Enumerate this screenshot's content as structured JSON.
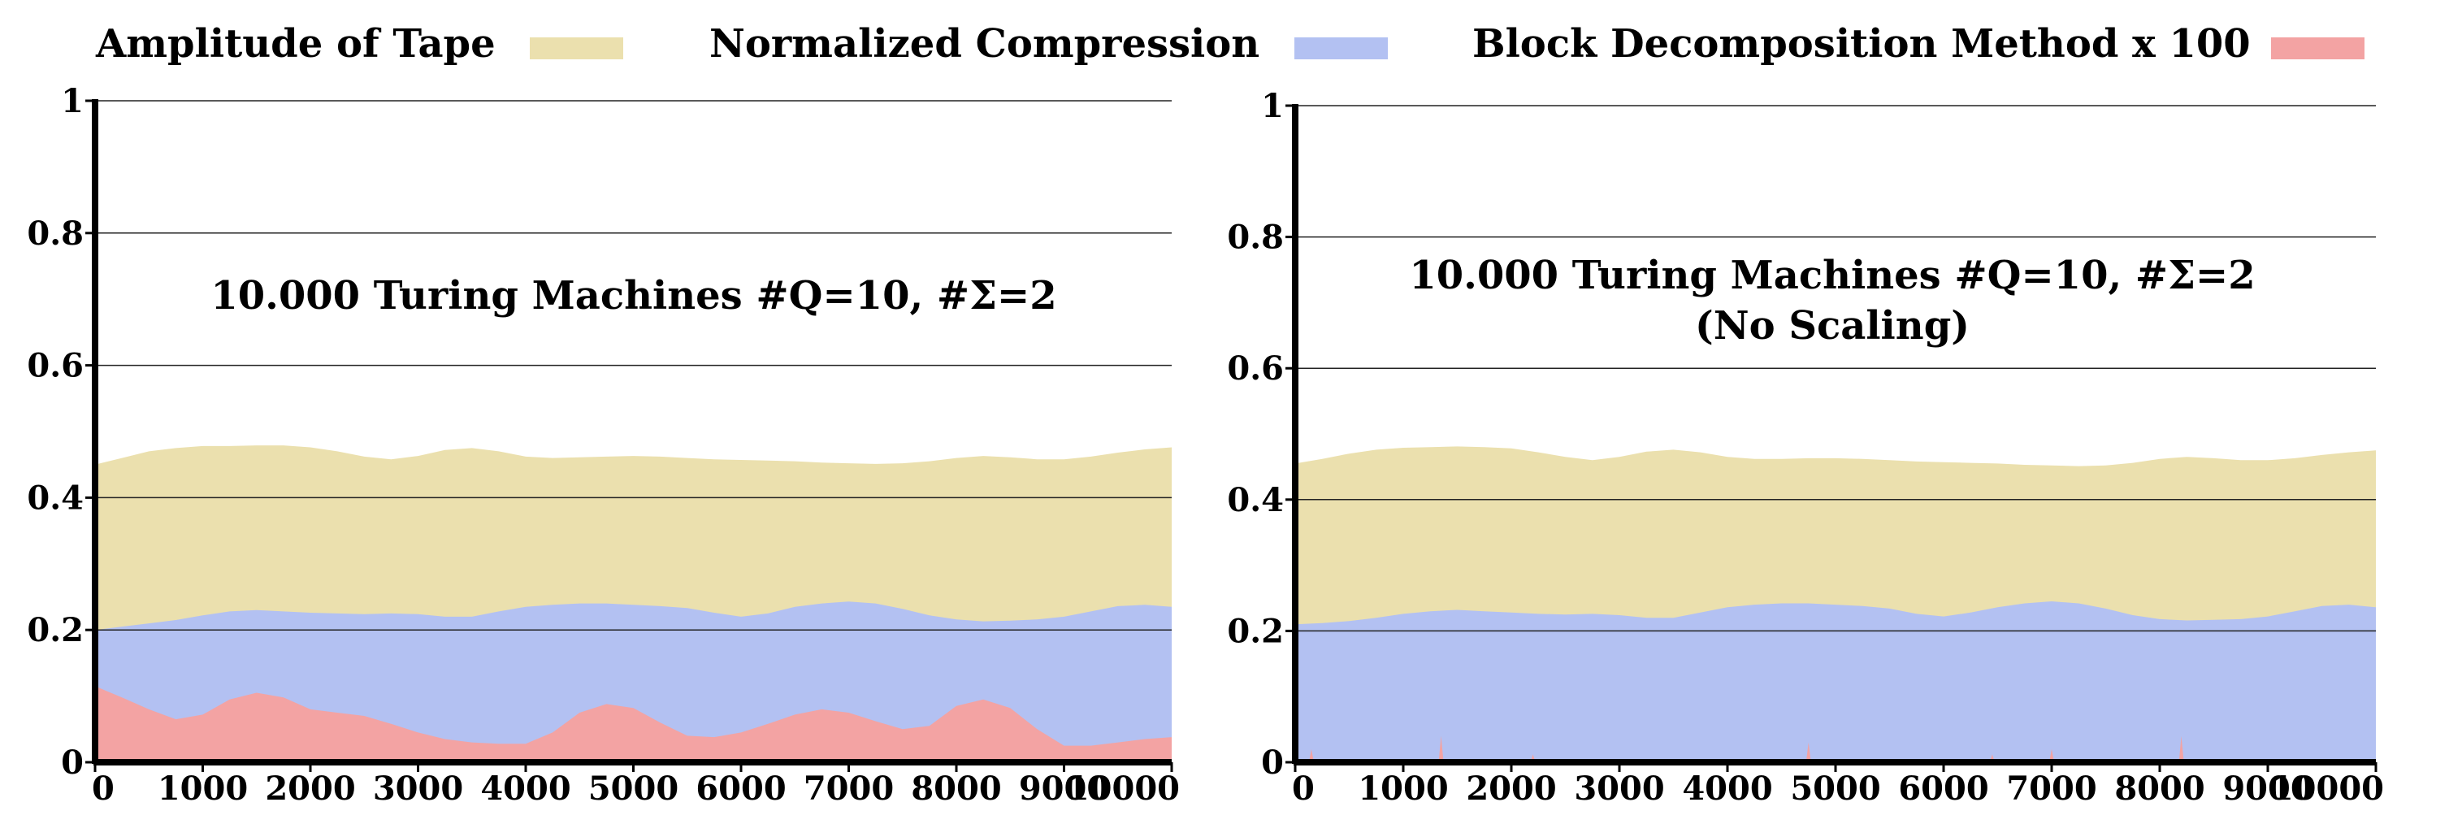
{
  "legend": [
    {
      "label": "Amplitude of Tape",
      "color": "#ebe0ae"
    },
    {
      "label": "Normalized Compression",
      "color": "#b3c1f2"
    },
    {
      "label": "Block Decomposition Method x 100",
      "color": "#f3a3a3"
    }
  ],
  "chart_data": [
    {
      "type": "area",
      "title": "10.000 Turing Machines #Q=10, #Σ=2",
      "subtitle": "",
      "xlabel": "",
      "ylabel": "",
      "xlim": [
        0,
        10000
      ],
      "ylim": [
        0,
        1
      ],
      "xticks": [
        "0",
        "1000",
        "2000",
        "3000",
        "4000",
        "5000",
        "6000",
        "7000",
        "8000",
        "9000",
        "10000"
      ],
      "yticks": [
        "0",
        "0.2",
        "0.4",
        "0.6",
        "0.8",
        "1"
      ],
      "grid": true,
      "x": [
        0,
        250,
        500,
        750,
        1000,
        1250,
        1500,
        1750,
        2000,
        2250,
        2500,
        2750,
        3000,
        3250,
        3500,
        3750,
        4000,
        4250,
        4500,
        4750,
        5000,
        5250,
        5500,
        5750,
        6000,
        6250,
        6500,
        6750,
        7000,
        7250,
        7500,
        7750,
        8000,
        8250,
        8500,
        8750,
        9000,
        9250,
        9500,
        9750,
        10000
      ],
      "series": [
        {
          "name": "Amplitude of Tape",
          "color": "#ebe0ae",
          "values": [
            0.45,
            0.46,
            0.47,
            0.475,
            0.478,
            0.478,
            0.479,
            0.479,
            0.476,
            0.47,
            0.462,
            0.458,
            0.463,
            0.472,
            0.475,
            0.47,
            0.462,
            0.46,
            0.461,
            0.462,
            0.463,
            0.462,
            0.46,
            0.458,
            0.457,
            0.456,
            0.455,
            0.453,
            0.452,
            0.451,
            0.452,
            0.455,
            0.46,
            0.463,
            0.461,
            0.458,
            0.458,
            0.462,
            0.468,
            0.473,
            0.476
          ]
        },
        {
          "name": "Normalized Compression",
          "color": "#b3c1f2",
          "values": [
            0.2,
            0.205,
            0.21,
            0.215,
            0.222,
            0.228,
            0.23,
            0.228,
            0.226,
            0.225,
            0.224,
            0.225,
            0.224,
            0.22,
            0.22,
            0.228,
            0.235,
            0.238,
            0.24,
            0.24,
            0.238,
            0.236,
            0.233,
            0.226,
            0.22,
            0.225,
            0.235,
            0.24,
            0.243,
            0.24,
            0.232,
            0.222,
            0.216,
            0.213,
            0.214,
            0.216,
            0.22,
            0.228,
            0.236,
            0.238,
            0.235
          ]
        },
        {
          "name": "Block Decomposition Method x 100",
          "color": "#f3a3a3",
          "values": [
            0.115,
            0.098,
            0.08,
            0.065,
            0.072,
            0.095,
            0.105,
            0.098,
            0.08,
            0.075,
            0.07,
            0.058,
            0.045,
            0.035,
            0.03,
            0.028,
            0.028,
            0.045,
            0.075,
            0.088,
            0.082,
            0.06,
            0.04,
            0.038,
            0.045,
            0.058,
            0.072,
            0.08,
            0.075,
            0.062,
            0.05,
            0.055,
            0.085,
            0.095,
            0.082,
            0.05,
            0.025,
            0.025,
            0.03,
            0.035,
            0.038
          ]
        }
      ]
    },
    {
      "type": "area",
      "title": "10.000 Turing Machines #Q=10, #Σ=2",
      "subtitle": "(No Scaling)",
      "xlabel": "",
      "ylabel": "",
      "xlim": [
        0,
        10000
      ],
      "ylim": [
        0,
        1
      ],
      "xticks": [
        "0",
        "1000",
        "2000",
        "3000",
        "4000",
        "5000",
        "6000",
        "7000",
        "8000",
        "9000",
        "10000"
      ],
      "yticks": [
        "0",
        "0.2",
        "0.4",
        "0.6",
        "0.8",
        "1"
      ],
      "grid": true,
      "x": [
        0,
        250,
        500,
        750,
        1000,
        1250,
        1500,
        1750,
        2000,
        2250,
        2500,
        2750,
        3000,
        3250,
        3500,
        3750,
        4000,
        4250,
        4500,
        4750,
        5000,
        5250,
        5500,
        5750,
        6000,
        6250,
        6500,
        6750,
        7000,
        7250,
        7500,
        7750,
        8000,
        8250,
        8500,
        8750,
        9000,
        9250,
        9500,
        9750,
        10000
      ],
      "series": [
        {
          "name": "Amplitude of Tape",
          "color": "#ebe0ae",
          "values": [
            0.455,
            0.462,
            0.47,
            0.476,
            0.479,
            0.48,
            0.481,
            0.48,
            0.478,
            0.472,
            0.465,
            0.46,
            0.465,
            0.473,
            0.476,
            0.472,
            0.465,
            0.462,
            0.462,
            0.463,
            0.463,
            0.462,
            0.46,
            0.458,
            0.457,
            0.456,
            0.455,
            0.453,
            0.452,
            0.451,
            0.452,
            0.456,
            0.462,
            0.465,
            0.463,
            0.46,
            0.46,
            0.463,
            0.468,
            0.472,
            0.475
          ]
        },
        {
          "name": "Normalized Compression",
          "color": "#b3c1f2",
          "values": [
            0.21,
            0.212,
            0.215,
            0.22,
            0.226,
            0.23,
            0.232,
            0.23,
            0.228,
            0.226,
            0.225,
            0.226,
            0.224,
            0.22,
            0.22,
            0.228,
            0.236,
            0.24,
            0.242,
            0.242,
            0.24,
            0.238,
            0.234,
            0.226,
            0.222,
            0.228,
            0.236,
            0.242,
            0.245,
            0.242,
            0.234,
            0.224,
            0.218,
            0.216,
            0.217,
            0.218,
            0.222,
            0.23,
            0.238,
            0.24,
            0.236
          ]
        },
        {
          "name": "Block Decomposition Method x 100",
          "color": "#f3a3a3",
          "values": [
            0,
            0,
            0,
            0,
            0,
            0,
            0,
            0,
            0,
            0,
            0,
            0,
            0,
            0,
            0,
            0,
            0,
            0,
            0,
            0,
            0,
            0,
            0,
            0,
            0,
            0,
            0,
            0,
            0,
            0,
            0,
            0,
            0,
            0,
            0,
            0,
            0,
            0,
            0,
            0,
            0
          ],
          "spikes": [
            {
              "x": 150,
              "y": 0.02
            },
            {
              "x": 1350,
              "y": 0.04
            },
            {
              "x": 2200,
              "y": 0.012
            },
            {
              "x": 4750,
              "y": 0.03
            },
            {
              "x": 6450,
              "y": 0.012
            },
            {
              "x": 7000,
              "y": 0.02
            },
            {
              "x": 8200,
              "y": 0.04
            }
          ]
        }
      ]
    }
  ]
}
